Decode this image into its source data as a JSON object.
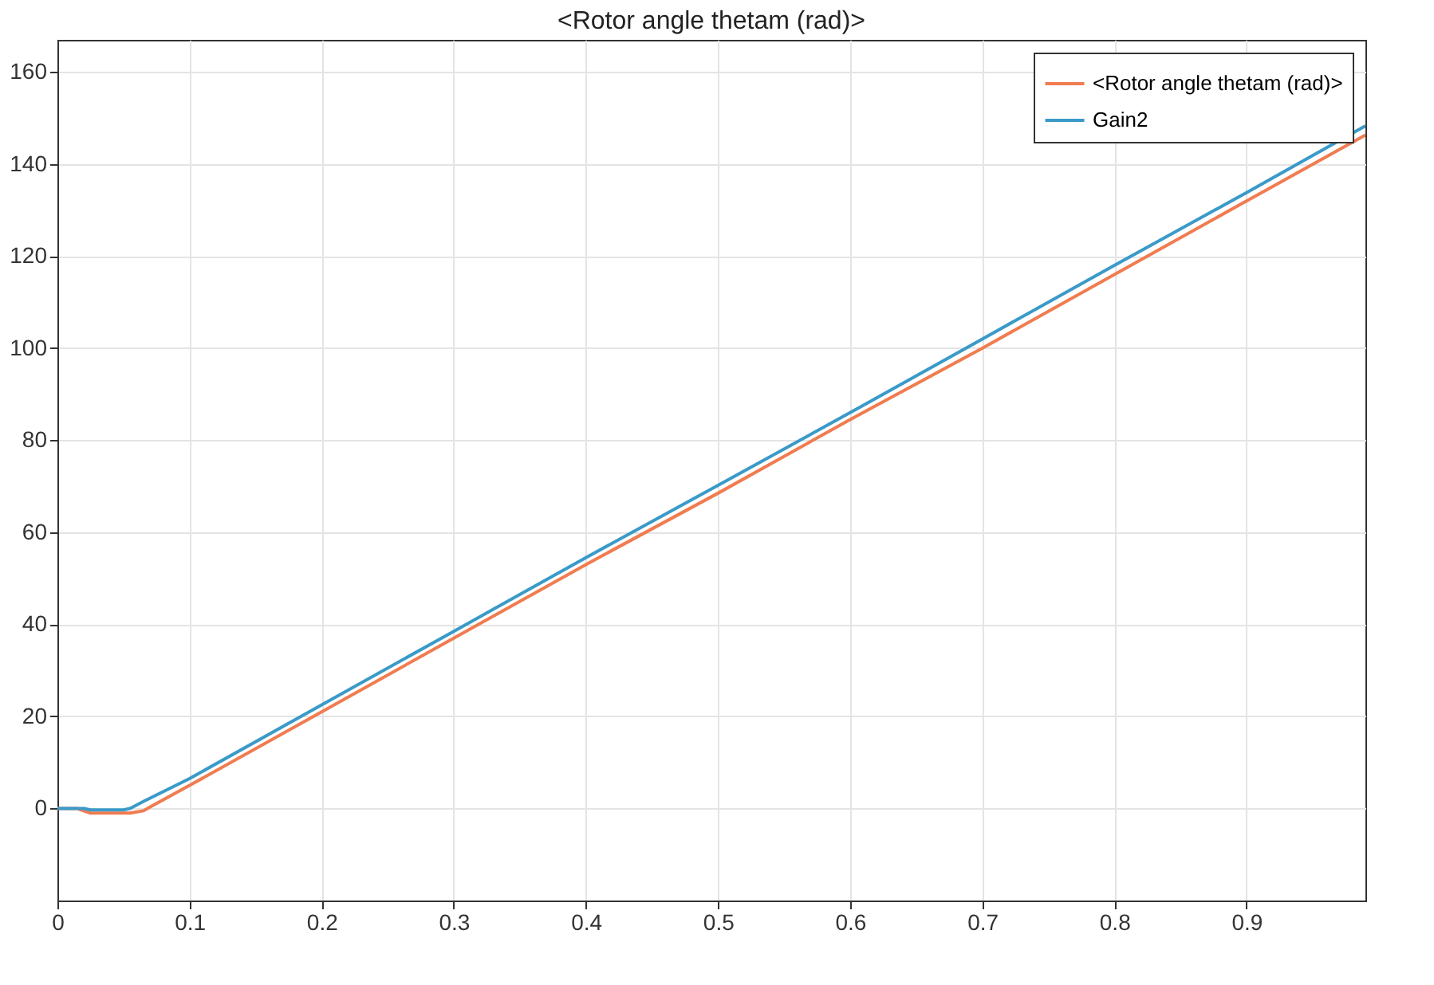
{
  "chart_data": {
    "type": "line",
    "title": "<Rotor angle thetam (rad)>",
    "xlim": [
      0,
      0.99
    ],
    "xticks": [
      0,
      0.1,
      0.2,
      0.3,
      0.4,
      0.5,
      0.6,
      0.7,
      0.8,
      0.9
    ],
    "ylim": [
      -20,
      167
    ],
    "yticks": [
      0,
      20,
      40,
      60,
      80,
      100,
      120,
      140,
      160
    ],
    "grid": true,
    "legend": "top right",
    "line_style": "solid",
    "marker": "none",
    "series": [
      {
        "name": "<Rotor angle thetam (rad)>",
        "color": "#f07c50",
        "x": [
          0,
          0.015,
          0.025,
          0.055,
          0.065,
          0.07,
          0.1,
          0.2,
          0.3,
          0.4,
          0.5,
          0.6,
          0.7,
          0.8,
          0.9,
          0.99
        ],
        "values": [
          0,
          0,
          -1,
          -1,
          -0.5,
          0.3,
          5,
          21,
          37,
          53,
          68.5,
          84.5,
          100,
          116,
          132,
          146.3
        ]
      },
      {
        "name": "Gain2",
        "color": "#3a9ac8",
        "x": [
          0,
          0.02,
          0.025,
          0.05,
          0.055,
          0.065,
          0.1,
          0.2,
          0.3,
          0.4,
          0.5,
          0.6,
          0.7,
          0.8,
          0.9,
          0.99
        ],
        "values": [
          0,
          0,
          -0.3,
          -0.3,
          0,
          1.5,
          6.5,
          22.5,
          38.5,
          54.5,
          70.2,
          86,
          102,
          118,
          133.8,
          148.3
        ]
      }
    ]
  }
}
